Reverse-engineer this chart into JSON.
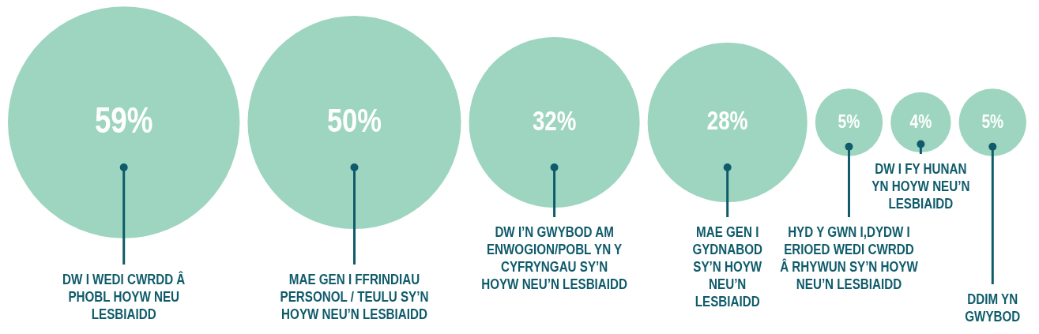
{
  "chart_data": {
    "type": "other",
    "categories": [
      "DW I WEDI CWRDD Â PHOBL HOYW NEU LESBIAIDD",
      "MAE GEN I FFRINDIAU PERSONOL / TEULU SY’N HOYW NEU’N LESBIAIDD",
      "DW I’N GWYBOD AM ENWOGION/POBL YN Y CYFRYNGAU SY’N HOYW NEU’N LESBIAIDD",
      "MAE GEN I GYDNABOD SY’N HOYW NEU’N LESBIAIDD",
      "HYD Y GWN I,DYDW I ERIOED WEDI CWRDD Â RHYWUN SY’N HOYW NEU’N LESBIAIDD",
      "DW I FY HUNAN YN HOYW NEU’N LESBIAIDD",
      "DDIM YN GWYBOD"
    ],
    "values": [
      59,
      50,
      32,
      28,
      5,
      4,
      5
    ],
    "value_labels": [
      "59%",
      "50%",
      "32%",
      "28%",
      "5%",
      "4%",
      "5%"
    ],
    "color": "#9dd5c0"
  }
}
